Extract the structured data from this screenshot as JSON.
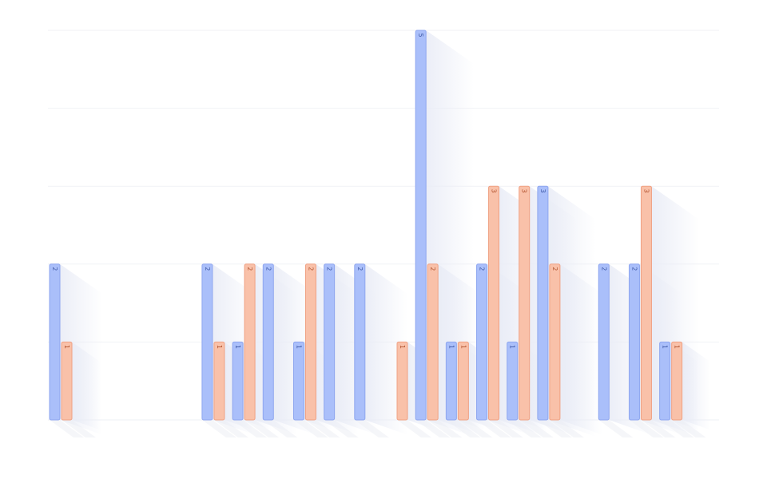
{
  "chart_data": {
    "type": "bar",
    "orientation": "vertical",
    "categories": [
      "",
      "",
      "",
      "",
      "",
      "",
      "",
      "",
      "",
      "",
      "",
      "",
      "",
      "",
      "",
      "",
      "",
      "",
      "",
      "",
      "",
      ""
    ],
    "series": [
      {
        "values": [
          2,
          0,
          0,
          0,
          0,
          2,
          1,
          2,
          1,
          2,
          2,
          0,
          5,
          1,
          2,
          1,
          3,
          0,
          2,
          2,
          1,
          0
        ]
      },
      {
        "values": [
          1,
          0,
          0,
          0,
          0,
          1,
          2,
          0,
          2,
          0,
          0,
          1,
          2,
          1,
          3,
          3,
          2,
          0,
          0,
          3,
          1,
          0
        ]
      }
    ],
    "ylim": [
      0,
      5
    ],
    "grid": true,
    "legend": "none",
    "colors": [
      "#aabffa",
      "#f9c1a9"
    ],
    "bar_stroke_colors": [
      "#8ea6ef",
      "#f0a183"
    ],
    "shadow_color": "#e8ebf5",
    "data_labels": true
  }
}
